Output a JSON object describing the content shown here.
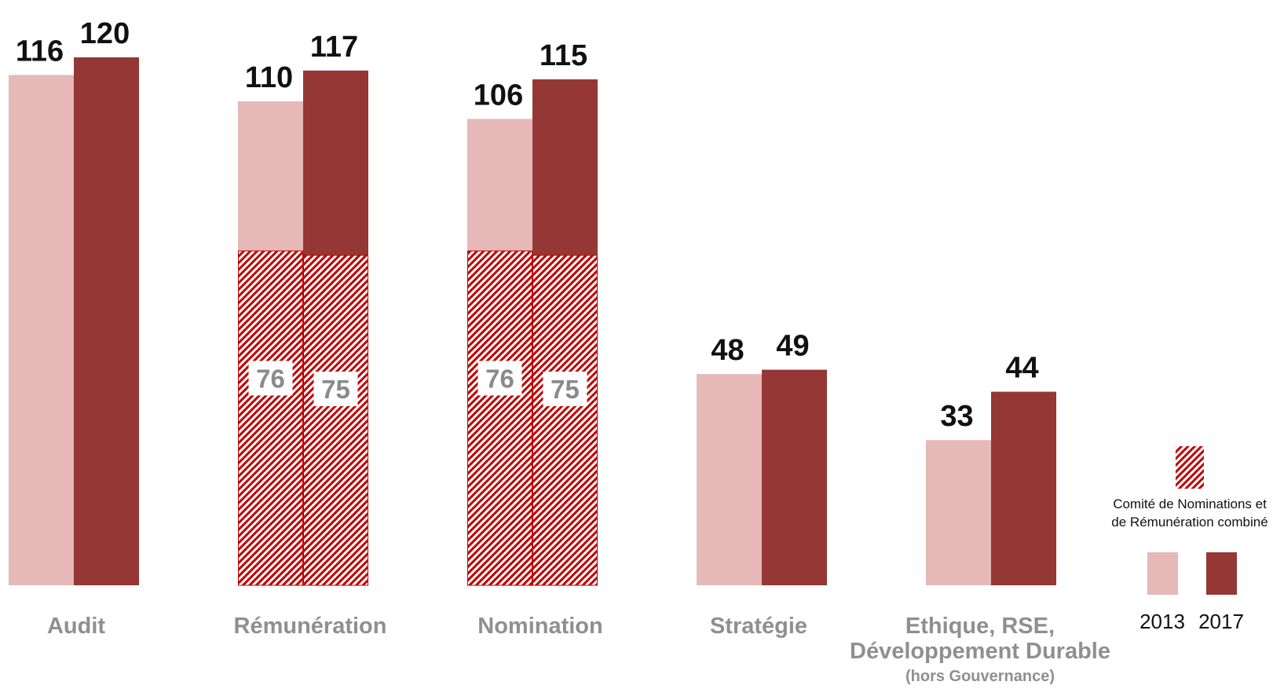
{
  "chart_data": {
    "type": "bar",
    "categories": [
      "Audit",
      "Rémunération",
      "Nomination",
      "Stratégie",
      "Ethique, RSE, Développement Durable (hors Gouvernance)"
    ],
    "category_lines": [
      [
        "Audit"
      ],
      [
        "Rémunération"
      ],
      [
        "Nomination"
      ],
      [
        "Stratégie"
      ],
      [
        "Ethique, RSE,",
        "Développement Durable",
        "(hors Gouvernance)"
      ]
    ],
    "series": [
      {
        "name": "2013",
        "color": "#e6b8b7",
        "values": [
          116,
          110,
          106,
          48,
          33
        ]
      },
      {
        "name": "2017",
        "color": "#953735",
        "values": [
          120,
          117,
          115,
          49,
          44
        ]
      }
    ],
    "combined_committee": {
      "name": "Comité de Nominations et de Rémunération combiné",
      "pattern_color": "#c00000",
      "values": {
        "Rémunération": {
          "2013": 76,
          "2017": 75
        },
        "Nomination": {
          "2013": 76,
          "2017": 75
        }
      }
    },
    "legend": {
      "pattern_label_lines": [
        "Comité de Nominations et",
        "de Rémunération combiné"
      ],
      "years": [
        "2013",
        "2017"
      ],
      "placement": "right"
    },
    "ylim": [
      0,
      120
    ],
    "grid": false,
    "title": "",
    "xlabel": "",
    "ylabel": ""
  }
}
